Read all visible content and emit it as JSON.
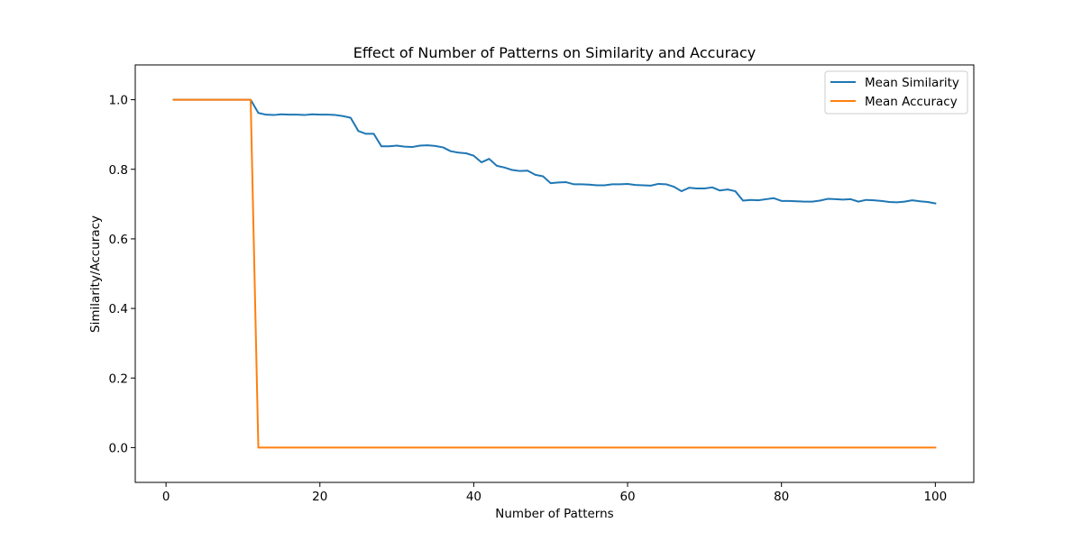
{
  "chart_data": {
    "type": "line",
    "title": "Effect of Number of Patterns on Similarity and Accuracy",
    "xlabel": "Number of Patterns",
    "ylabel": "Similarity/Accuracy",
    "xlim": [
      -4,
      105
    ],
    "ylim": [
      -0.1,
      1.1
    ],
    "xticks": [
      0,
      20,
      40,
      60,
      80,
      100
    ],
    "yticks": [
      0.0,
      0.2,
      0.4,
      0.6,
      0.8,
      1.0
    ],
    "xtick_labels": [
      "0",
      "20",
      "40",
      "60",
      "80",
      "100"
    ],
    "ytick_labels": [
      "0.0",
      "0.2",
      "0.4",
      "0.6",
      "0.8",
      "1.0"
    ],
    "grid": false,
    "legend_position": "top-right",
    "series": [
      {
        "name": "Mean Similarity",
        "color": "#1f77b4",
        "x": [
          1,
          2,
          3,
          4,
          5,
          6,
          7,
          8,
          9,
          10,
          11,
          12,
          13,
          14,
          15,
          16,
          17,
          18,
          19,
          20,
          21,
          22,
          23,
          24,
          25,
          26,
          27,
          28,
          29,
          30,
          31,
          32,
          33,
          34,
          35,
          36,
          37,
          38,
          39,
          40,
          41,
          42,
          43,
          44,
          45,
          46,
          47,
          48,
          49,
          50,
          51,
          52,
          53,
          54,
          55,
          56,
          57,
          58,
          59,
          60,
          61,
          62,
          63,
          64,
          65,
          66,
          67,
          68,
          69,
          70,
          71,
          72,
          73,
          74,
          75,
          76,
          77,
          78,
          79,
          80,
          81,
          82,
          83,
          84,
          85,
          86,
          87,
          88,
          89,
          90,
          91,
          92,
          93,
          94,
          95,
          96,
          97,
          98,
          99,
          100
        ],
        "y": [
          1.0,
          1.0,
          1.0,
          1.0,
          1.0,
          1.0,
          1.0,
          1.0,
          1.0,
          1.0,
          1.0,
          0.962,
          0.957,
          0.956,
          0.958,
          0.957,
          0.957,
          0.956,
          0.958,
          0.957,
          0.957,
          0.956,
          0.953,
          0.948,
          0.91,
          0.902,
          0.902,
          0.866,
          0.866,
          0.868,
          0.865,
          0.864,
          0.868,
          0.869,
          0.867,
          0.863,
          0.852,
          0.848,
          0.846,
          0.839,
          0.82,
          0.83,
          0.81,
          0.805,
          0.798,
          0.795,
          0.796,
          0.784,
          0.78,
          0.76,
          0.762,
          0.763,
          0.757,
          0.757,
          0.756,
          0.754,
          0.754,
          0.757,
          0.757,
          0.758,
          0.755,
          0.754,
          0.753,
          0.758,
          0.757,
          0.75,
          0.737,
          0.747,
          0.745,
          0.745,
          0.748,
          0.739,
          0.742,
          0.737,
          0.71,
          0.712,
          0.711,
          0.714,
          0.717,
          0.709,
          0.709,
          0.708,
          0.707,
          0.707,
          0.71,
          0.715,
          0.714,
          0.713,
          0.714,
          0.707,
          0.712,
          0.711,
          0.709,
          0.706,
          0.705,
          0.707,
          0.711,
          0.708,
          0.706,
          0.702
        ]
      },
      {
        "name": "Mean Accuracy",
        "color": "#ff7f0e",
        "x": [
          1,
          2,
          3,
          4,
          5,
          6,
          7,
          8,
          9,
          10,
          11,
          12,
          13,
          14,
          15,
          16,
          17,
          18,
          19,
          20,
          21,
          22,
          23,
          24,
          25,
          26,
          27,
          28,
          29,
          30,
          31,
          32,
          33,
          34,
          35,
          36,
          37,
          38,
          39,
          40,
          41,
          42,
          43,
          44,
          45,
          46,
          47,
          48,
          49,
          50,
          51,
          52,
          53,
          54,
          55,
          56,
          57,
          58,
          59,
          60,
          61,
          62,
          63,
          64,
          65,
          66,
          67,
          68,
          69,
          70,
          71,
          72,
          73,
          74,
          75,
          76,
          77,
          78,
          79,
          80,
          81,
          82,
          83,
          84,
          85,
          86,
          87,
          88,
          89,
          90,
          91,
          92,
          93,
          94,
          95,
          96,
          97,
          98,
          99,
          100
        ],
        "y": [
          1,
          1,
          1,
          1,
          1,
          1,
          1,
          1,
          1,
          1,
          1,
          0,
          0,
          0,
          0,
          0,
          0,
          0,
          0,
          0,
          0,
          0,
          0,
          0,
          0,
          0,
          0,
          0,
          0,
          0,
          0,
          0,
          0,
          0,
          0,
          0,
          0,
          0,
          0,
          0,
          0,
          0,
          0,
          0,
          0,
          0,
          0,
          0,
          0,
          0,
          0,
          0,
          0,
          0,
          0,
          0,
          0,
          0,
          0,
          0,
          0,
          0,
          0,
          0,
          0,
          0,
          0,
          0,
          0,
          0,
          0,
          0,
          0,
          0,
          0,
          0,
          0,
          0,
          0,
          0,
          0,
          0,
          0,
          0,
          0,
          0,
          0,
          0,
          0,
          0,
          0,
          0,
          0,
          0,
          0,
          0,
          0,
          0,
          0,
          0
        ]
      }
    ]
  }
}
